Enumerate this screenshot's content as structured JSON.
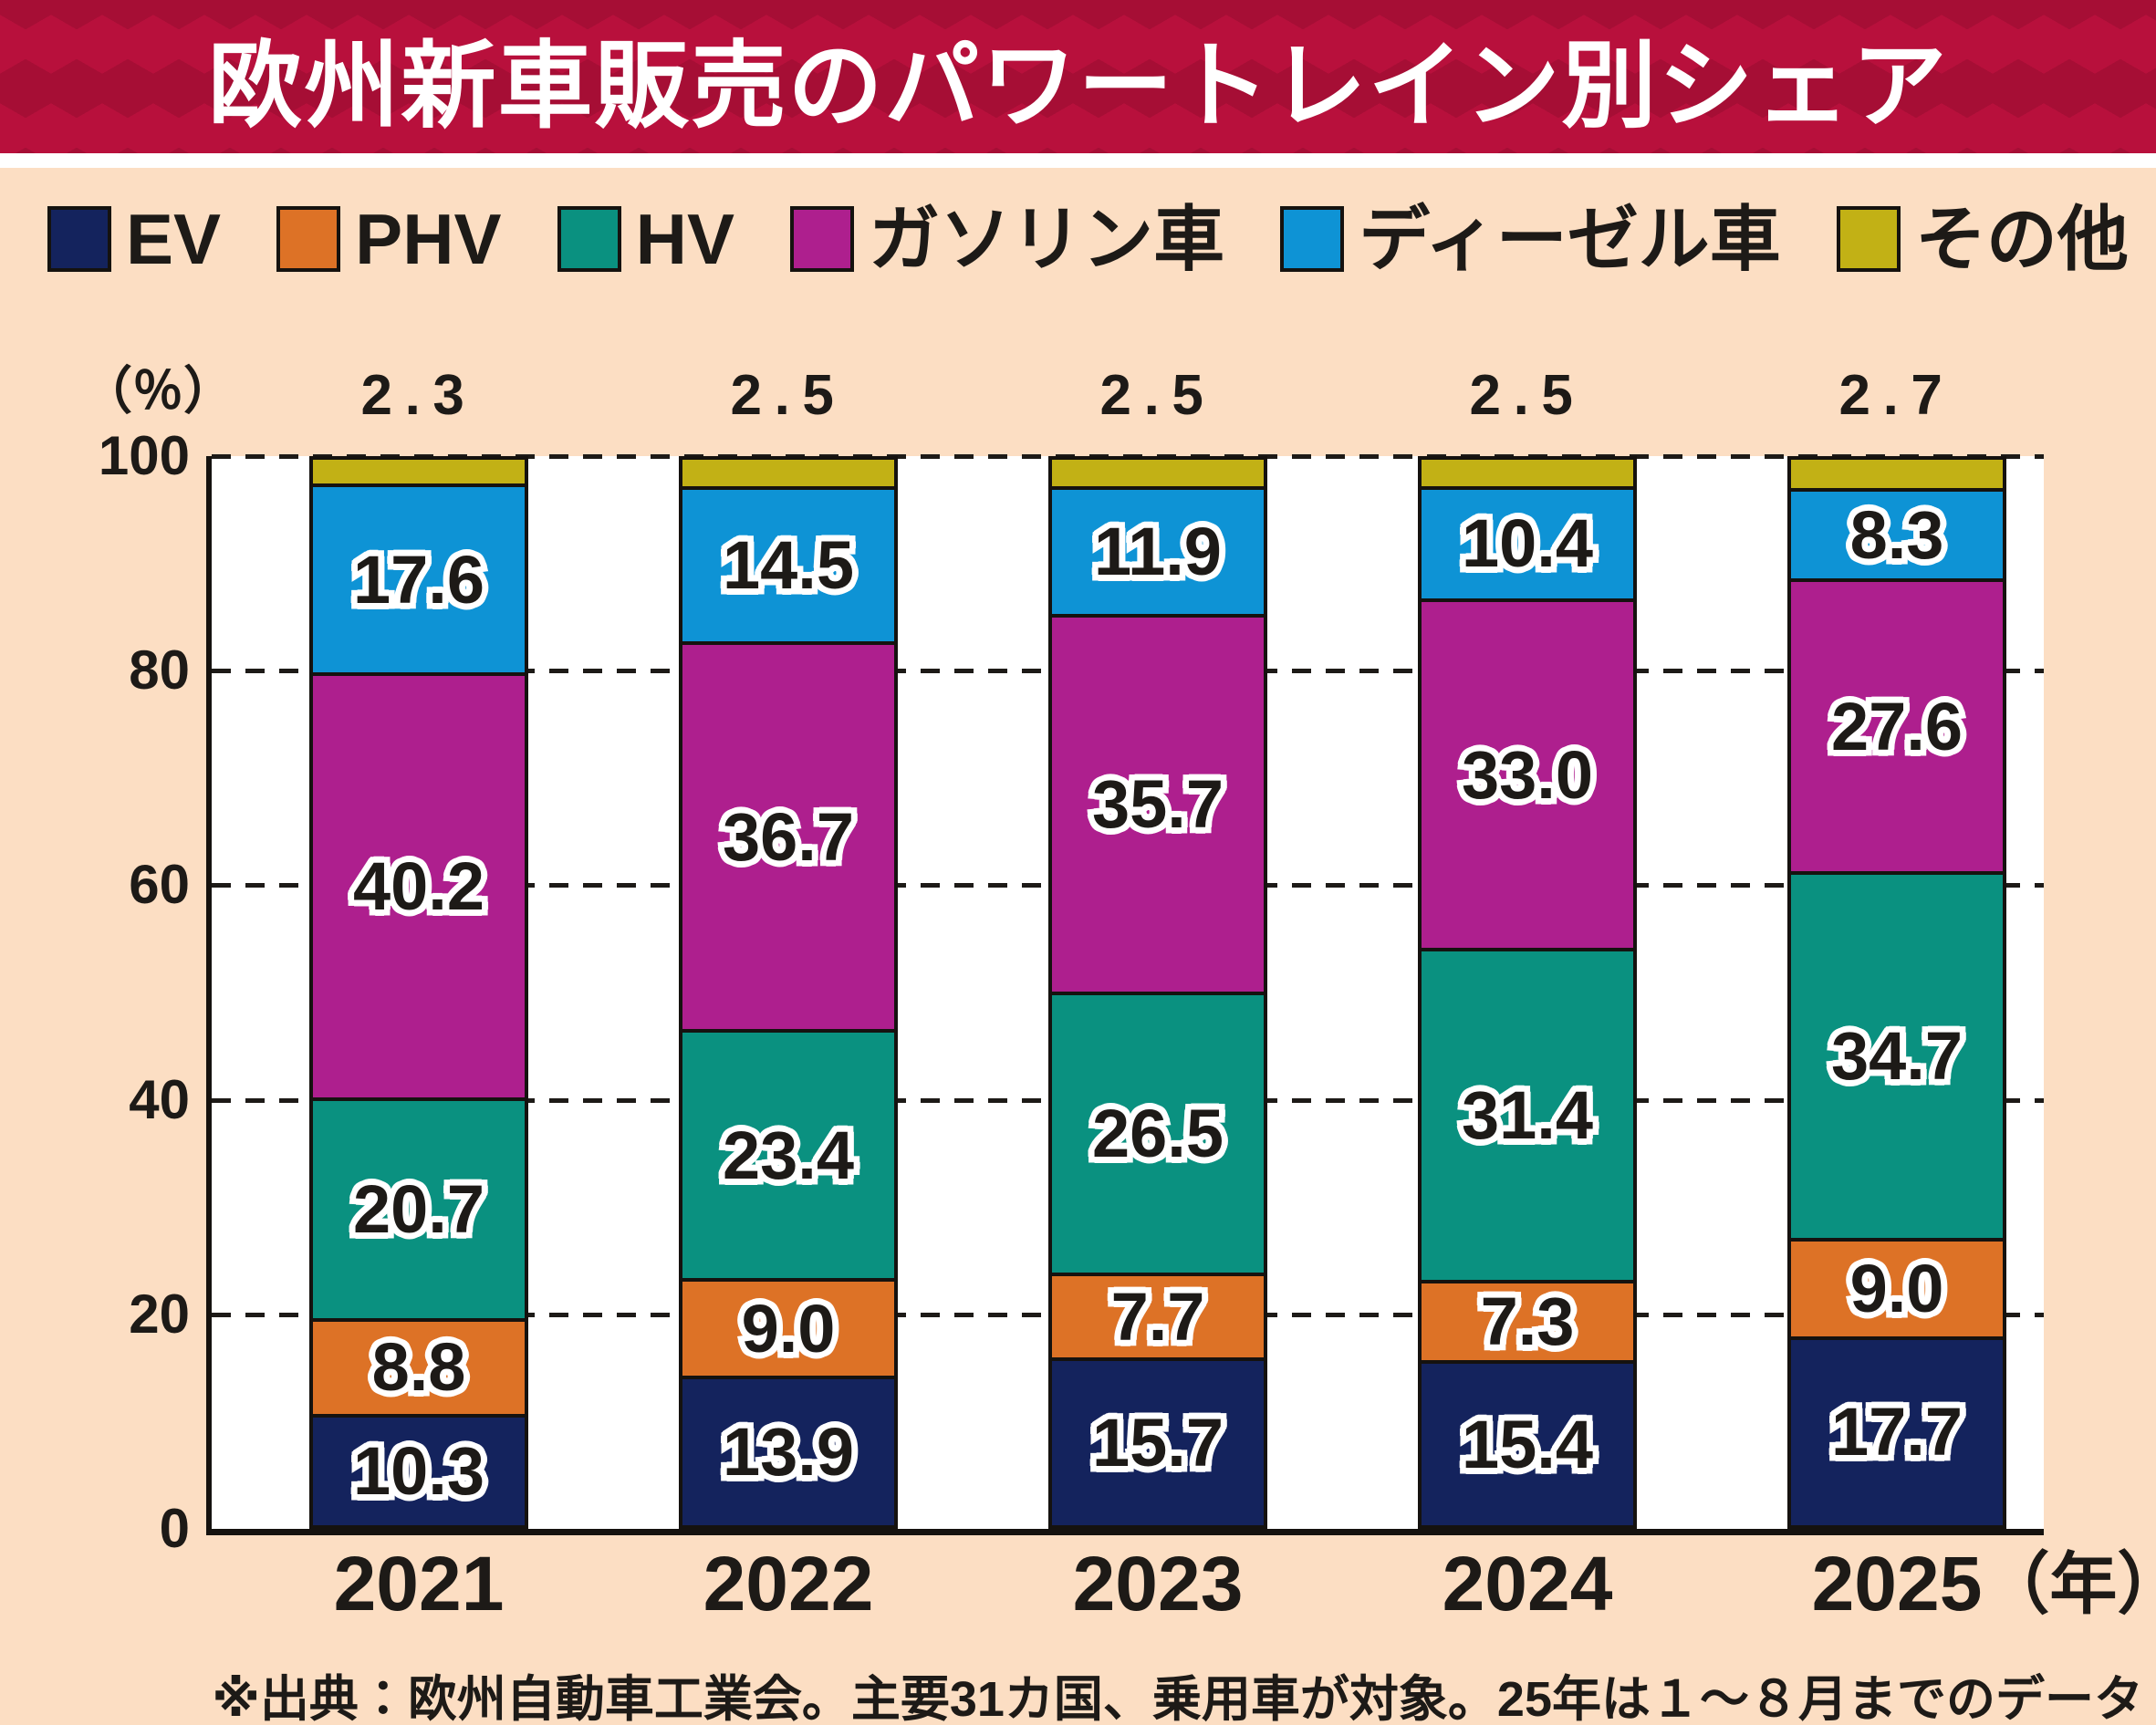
{
  "page": {
    "title": "欧州新車販売のパワートレイン別シェア",
    "footer": "※出典：欧州自動車工業会。主要31カ国、乗用車が対象。25年は１～８月までのデータ"
  },
  "colors": {
    "background": "#fcdec3",
    "header_bg": "#b8103c",
    "header_triangle": "#a60e35",
    "plot_bg": "#ffffff",
    "ink": "#1d1a17"
  },
  "chart_data": {
    "type": "bar",
    "stacked": true,
    "title": "欧州新車販売のパワートレイン別シェア",
    "unit_label": "（％）",
    "categories": [
      "2021",
      "2022",
      "2023",
      "2024",
      "2025"
    ],
    "x_axis_suffix": "（年）",
    "yticks": [
      0,
      20,
      40,
      60,
      80,
      100
    ],
    "ylim": [
      0,
      100
    ],
    "grid": "dashed",
    "legend_position": "top",
    "series": [
      {
        "name": "EV",
        "color": "#14235d",
        "values": [
          10.3,
          13.9,
          15.7,
          15.4,
          17.7
        ]
      },
      {
        "name": "PHV",
        "color": "#dd7226",
        "values": [
          8.8,
          9.0,
          7.7,
          7.3,
          9.0
        ]
      },
      {
        "name": "HV",
        "color": "#0a9180",
        "values": [
          20.7,
          23.4,
          26.5,
          31.4,
          34.7
        ]
      },
      {
        "name": "ガソリン車",
        "color": "#ae1f8e",
        "values": [
          40.2,
          36.7,
          35.7,
          33.0,
          27.6
        ]
      },
      {
        "name": "ディーゼル車",
        "color": "#0e93d5",
        "values": [
          17.6,
          14.5,
          11.9,
          10.4,
          8.3
        ]
      },
      {
        "name": "その他",
        "color": "#c2b115",
        "values": [
          2.3,
          2.5,
          2.5,
          2.5,
          2.7
        ],
        "labels_above_bars": true
      }
    ]
  }
}
